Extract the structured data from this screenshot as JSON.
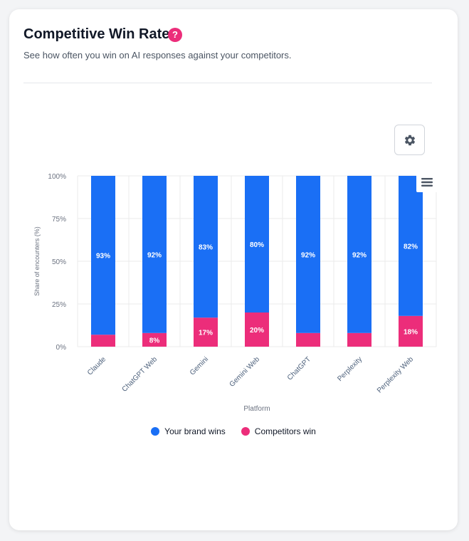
{
  "header": {
    "title": "Competitive Win Rate",
    "help_icon_text": "?",
    "subtitle": "See how often you win on AI responses against your competitors."
  },
  "toolbar": {
    "settings_icon": "gear-icon",
    "menu_icon": "hamburger-menu-icon"
  },
  "colors": {
    "brand": "#1a6ff5",
    "competitor": "#ec2d7a",
    "grid": "#ebebeb",
    "tick_text": "#6b7280",
    "axis_text": "#4b5f7a"
  },
  "chart_data": {
    "type": "bar",
    "stacked": true,
    "categories": [
      "Claude",
      "ChatGPT Web",
      "Gemini",
      "Gemini Web",
      "ChatGPT",
      "Perplexity",
      "Perplexity Web"
    ],
    "series": [
      {
        "name": "Your brand wins",
        "values": [
          93,
          92,
          83,
          80,
          92,
          92,
          82
        ],
        "labels": [
          "93%",
          "92%",
          "83%",
          "80%",
          "92%",
          "92%",
          "82%"
        ]
      },
      {
        "name": "Competitors win",
        "values": [
          7,
          8,
          17,
          20,
          8,
          8,
          18
        ],
        "labels": [
          "",
          "8%",
          "17%",
          "20%",
          "",
          "",
          "18%"
        ]
      }
    ],
    "xlabel": "Platform",
    "ylabel": "Share of encounters (%)",
    "ylim": [
      0,
      100
    ],
    "yticks": [
      0,
      25,
      50,
      75,
      100
    ],
    "ytick_labels": [
      "0%",
      "25%",
      "50%",
      "75%",
      "100%"
    ],
    "legend_position": "bottom-center"
  }
}
